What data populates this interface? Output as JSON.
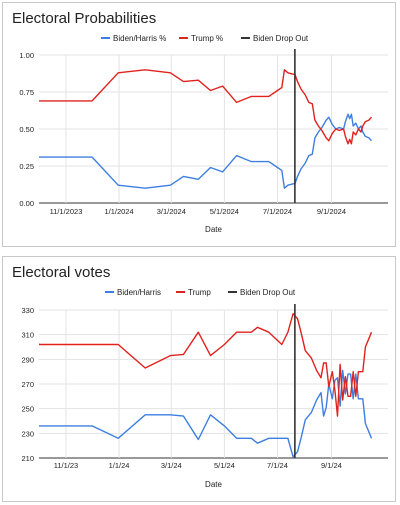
{
  "colors": {
    "biden": "#3d7fe0",
    "trump": "#e0221e",
    "dropout": "#333333",
    "grid": "#e3e3e3"
  },
  "chart_data": [
    {
      "type": "line",
      "title": "Electoral Probabilities",
      "xlabel": "Date",
      "ylabel": "",
      "x_axis": "date",
      "xlim": [
        "2023-10-01",
        "2024-11-05"
      ],
      "ylim": [
        0,
        1
      ],
      "xticks": [
        {
          "value": "2023-11-01",
          "label": "11/1/2023"
        },
        {
          "value": "2024-01-01",
          "label": "1/1/2024"
        },
        {
          "value": "2024-03-01",
          "label": "3/1/2024"
        },
        {
          "value": "2024-05-01",
          "label": "5/1/2024"
        },
        {
          "value": "2024-07-01",
          "label": "7/1/2024"
        },
        {
          "value": "2024-09-01",
          "label": "9/1/2024"
        }
      ],
      "yticks": [
        {
          "value": 0,
          "label": "0.00"
        },
        {
          "value": 0.25,
          "label": "0.25"
        },
        {
          "value": 0.5,
          "label": "0.50"
        },
        {
          "value": 0.75,
          "label": "0.75"
        },
        {
          "value": 1,
          "label": "1.00"
        }
      ],
      "grid": true,
      "legend_position": "top-center",
      "series": [
        {
          "name": "Biden/Harris %",
          "color": "#3d7fe0",
          "points": [
            [
              "2023-10-01",
              0.31
            ],
            [
              "2023-12-01",
              0.31
            ],
            [
              "2023-12-31",
              0.12
            ],
            [
              "2024-01-31",
              0.1
            ],
            [
              "2024-02-29",
              0.12
            ],
            [
              "2024-03-15",
              0.18
            ],
            [
              "2024-04-01",
              0.16
            ],
            [
              "2024-04-15",
              0.24
            ],
            [
              "2024-04-29",
              0.21
            ],
            [
              "2024-05-15",
              0.32
            ],
            [
              "2024-06-01",
              0.28
            ],
            [
              "2024-06-15",
              0.28
            ],
            [
              "2024-06-21",
              0.28
            ],
            [
              "2024-07-01",
              0.24
            ],
            [
              "2024-07-06",
              0.22
            ],
            [
              "2024-07-09",
              0.1
            ],
            [
              "2024-07-13",
              0.12
            ],
            [
              "2024-07-19",
              0.13
            ],
            [
              "2024-07-21",
              0.13
            ],
            [
              "2024-07-24",
              0.18
            ],
            [
              "2024-07-28",
              0.23
            ],
            [
              "2024-08-02",
              0.27
            ],
            [
              "2024-08-06",
              0.32
            ],
            [
              "2024-08-10",
              0.33
            ],
            [
              "2024-08-13",
              0.44
            ],
            [
              "2024-08-17",
              0.48
            ],
            [
              "2024-08-21",
              0.51
            ],
            [
              "2024-08-26",
              0.56
            ],
            [
              "2024-08-29",
              0.58
            ],
            [
              "2024-09-02",
              0.53
            ],
            [
              "2024-09-06",
              0.5
            ],
            [
              "2024-09-10",
              0.51
            ],
            [
              "2024-09-15",
              0.5
            ],
            [
              "2024-09-17",
              0.55
            ],
            [
              "2024-09-20",
              0.6
            ],
            [
              "2024-09-22",
              0.57
            ],
            [
              "2024-09-24",
              0.6
            ],
            [
              "2024-09-26",
              0.52
            ],
            [
              "2024-09-29",
              0.54
            ],
            [
              "2024-10-02",
              0.5
            ],
            [
              "2024-10-05",
              0.52
            ],
            [
              "2024-10-07",
              0.48
            ],
            [
              "2024-10-10",
              0.45
            ],
            [
              "2024-10-14",
              0.44
            ],
            [
              "2024-10-17",
              0.42
            ]
          ]
        },
        {
          "name": "Trump %",
          "color": "#e0221e",
          "points": [
            [
              "2023-10-01",
              0.69
            ],
            [
              "2023-12-01",
              0.69
            ],
            [
              "2023-12-31",
              0.88
            ],
            [
              "2024-01-31",
              0.9
            ],
            [
              "2024-02-29",
              0.88
            ],
            [
              "2024-03-15",
              0.82
            ],
            [
              "2024-04-01",
              0.83
            ],
            [
              "2024-04-15",
              0.76
            ],
            [
              "2024-04-29",
              0.79
            ],
            [
              "2024-05-15",
              0.68
            ],
            [
              "2024-06-01",
              0.72
            ],
            [
              "2024-06-15",
              0.72
            ],
            [
              "2024-06-21",
              0.72
            ],
            [
              "2024-07-01",
              0.76
            ],
            [
              "2024-07-06",
              0.78
            ],
            [
              "2024-07-09",
              0.9
            ],
            [
              "2024-07-13",
              0.88
            ],
            [
              "2024-07-19",
              0.87
            ],
            [
              "2024-07-21",
              0.87
            ],
            [
              "2024-07-24",
              0.82
            ],
            [
              "2024-07-28",
              0.77
            ],
            [
              "2024-08-02",
              0.73
            ],
            [
              "2024-08-06",
              0.68
            ],
            [
              "2024-08-10",
              0.67
            ],
            [
              "2024-08-13",
              0.56
            ],
            [
              "2024-08-17",
              0.52
            ],
            [
              "2024-08-21",
              0.49
            ],
            [
              "2024-08-26",
              0.44
            ],
            [
              "2024-08-29",
              0.42
            ],
            [
              "2024-09-02",
              0.47
            ],
            [
              "2024-09-06",
              0.5
            ],
            [
              "2024-09-10",
              0.49
            ],
            [
              "2024-09-15",
              0.5
            ],
            [
              "2024-09-17",
              0.45
            ],
            [
              "2024-09-20",
              0.4
            ],
            [
              "2024-09-22",
              0.43
            ],
            [
              "2024-09-24",
              0.4
            ],
            [
              "2024-09-26",
              0.48
            ],
            [
              "2024-09-29",
              0.46
            ],
            [
              "2024-10-02",
              0.5
            ],
            [
              "2024-10-05",
              0.48
            ],
            [
              "2024-10-07",
              0.52
            ],
            [
              "2024-10-10",
              0.55
            ],
            [
              "2024-10-14",
              0.56
            ],
            [
              "2024-10-17",
              0.58
            ]
          ]
        }
      ],
      "dropout": {
        "name": "Biden Drop Out",
        "date": "2024-07-21"
      }
    },
    {
      "type": "line",
      "title": "Electoral votes",
      "xlabel": "Date",
      "ylabel": "",
      "x_axis": "date",
      "xlim": [
        "2023-10-01",
        "2024-11-05"
      ],
      "ylim": [
        210,
        330
      ],
      "xticks": [
        {
          "value": "2023-11-01",
          "label": "11/1/23"
        },
        {
          "value": "2024-01-01",
          "label": "1/1/24"
        },
        {
          "value": "2024-03-01",
          "label": "3/1/24"
        },
        {
          "value": "2024-05-01",
          "label": "5/1/24"
        },
        {
          "value": "2024-07-01",
          "label": "7/1/24"
        },
        {
          "value": "2024-09-01",
          "label": "9/1/24"
        }
      ],
      "yticks": [
        {
          "value": 210,
          "label": "210"
        },
        {
          "value": 230,
          "label": "230"
        },
        {
          "value": 250,
          "label": "250"
        },
        {
          "value": 270,
          "label": "270"
        },
        {
          "value": 290,
          "label": "290"
        },
        {
          "value": 310,
          "label": "310"
        },
        {
          "value": 330,
          "label": "330"
        }
      ],
      "grid": true,
      "legend_position": "top-center",
      "series": [
        {
          "name": "Biden/Harris",
          "color": "#3d7fe0",
          "points": [
            [
              "2023-10-01",
              236
            ],
            [
              "2023-12-01",
              236
            ],
            [
              "2023-12-31",
              226
            ],
            [
              "2024-01-31",
              245
            ],
            [
              "2024-02-29",
              245
            ],
            [
              "2024-03-15",
              244
            ],
            [
              "2024-04-01",
              225
            ],
            [
              "2024-04-15",
              245
            ],
            [
              "2024-05-01",
              236
            ],
            [
              "2024-05-15",
              226
            ],
            [
              "2024-06-01",
              226
            ],
            [
              "2024-06-08",
              222
            ],
            [
              "2024-06-21",
              226
            ],
            [
              "2024-07-06",
              226
            ],
            [
              "2024-07-13",
              226
            ],
            [
              "2024-07-19",
              211
            ],
            [
              "2024-07-24",
              215
            ],
            [
              "2024-07-28",
              226
            ],
            [
              "2024-08-02",
              241
            ],
            [
              "2024-08-09",
              247
            ],
            [
              "2024-08-15",
              257
            ],
            [
              "2024-08-20",
              263
            ],
            [
              "2024-08-23",
              244
            ],
            [
              "2024-08-26",
              251
            ],
            [
              "2024-08-29",
              270
            ],
            [
              "2024-09-02",
              258
            ],
            [
              "2024-09-05",
              273
            ],
            [
              "2024-09-08",
              275
            ],
            [
              "2024-09-11",
              252
            ],
            [
              "2024-09-14",
              281
            ],
            [
              "2024-09-17",
              262
            ],
            [
              "2024-09-20",
              278
            ],
            [
              "2024-09-23",
              278
            ],
            [
              "2024-09-26",
              258
            ],
            [
              "2024-09-29",
              278
            ],
            [
              "2024-10-02",
              258
            ],
            [
              "2024-10-07",
              258
            ],
            [
              "2024-10-10",
              238
            ],
            [
              "2024-10-17",
              226
            ]
          ]
        },
        {
          "name": "Trump",
          "color": "#e0221e",
          "points": [
            [
              "2023-10-01",
              302
            ],
            [
              "2023-12-01",
              302
            ],
            [
              "2023-12-31",
              302
            ],
            [
              "2024-01-31",
              283
            ],
            [
              "2024-02-29",
              293
            ],
            [
              "2024-03-15",
              294
            ],
            [
              "2024-04-01",
              312
            ],
            [
              "2024-04-15",
              293
            ],
            [
              "2024-05-01",
              302
            ],
            [
              "2024-05-15",
              312
            ],
            [
              "2024-06-01",
              312
            ],
            [
              "2024-06-08",
              316
            ],
            [
              "2024-06-21",
              312
            ],
            [
              "2024-07-06",
              302
            ],
            [
              "2024-07-13",
              312
            ],
            [
              "2024-07-19",
              327
            ],
            [
              "2024-07-24",
              323
            ],
            [
              "2024-07-28",
              312
            ],
            [
              "2024-08-02",
              297
            ],
            [
              "2024-08-09",
              291
            ],
            [
              "2024-08-15",
              281
            ],
            [
              "2024-08-20",
              275
            ],
            [
              "2024-08-23",
              287
            ],
            [
              "2024-08-26",
              287
            ],
            [
              "2024-08-29",
              268
            ],
            [
              "2024-09-02",
              280
            ],
            [
              "2024-09-05",
              265
            ],
            [
              "2024-09-08",
              244
            ],
            [
              "2024-09-11",
              286
            ],
            [
              "2024-09-14",
              257
            ],
            [
              "2024-09-17",
              276
            ],
            [
              "2024-09-20",
              260
            ],
            [
              "2024-09-23",
              260
            ],
            [
              "2024-09-26",
              280
            ],
            [
              "2024-09-29",
              260
            ],
            [
              "2024-10-02",
              280
            ],
            [
              "2024-10-07",
              280
            ],
            [
              "2024-10-10",
              300
            ],
            [
              "2024-10-17",
              312
            ]
          ]
        }
      ],
      "dropout": {
        "name": "Biden Drop Out",
        "date": "2024-07-21"
      }
    }
  ]
}
